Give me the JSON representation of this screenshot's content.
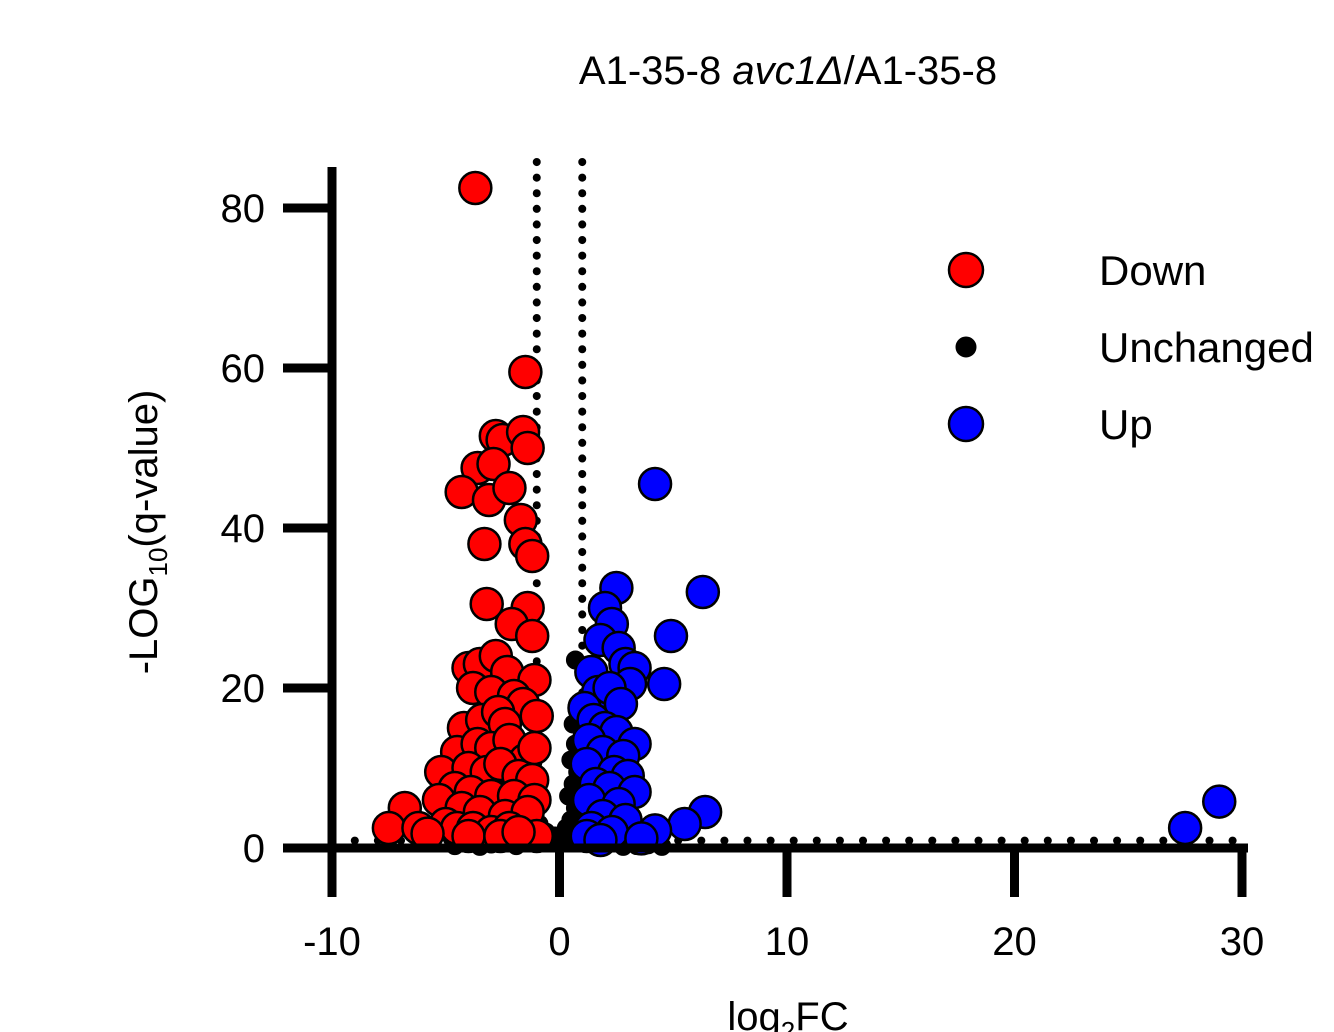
{
  "chart_data": {
    "type": "scatter",
    "title": "A1-35-8 avc1Δ/A1-35-8",
    "title_parts": {
      "strain": "A1-35-8",
      "mutant": "avc1Δ",
      "reference": "/A1-35-8"
    },
    "xlabel": "log2FC",
    "xlabel_parts": {
      "base": "log",
      "sub": "2",
      "tail": "FC"
    },
    "ylabel": "-LOG10(q-value)",
    "ylabel_parts": {
      "pre": "-LOG",
      "sub": "10",
      "post": "(q-value)"
    },
    "xlim": [
      -10,
      30
    ],
    "ylim": [
      0,
      85
    ],
    "xticks": [
      -10,
      0,
      10,
      20,
      30
    ],
    "yticks": [
      0,
      20,
      40,
      60,
      80
    ],
    "xtick_labels": [
      "-10",
      "0",
      "10",
      "20",
      "30"
    ],
    "ytick_labels": [
      "0",
      "20",
      "40",
      "60",
      "80"
    ],
    "fc_thresholds": [
      -1,
      1
    ],
    "q_threshold": 1.3,
    "grid": false,
    "legend_position": "top-right",
    "series": [
      {
        "name": "Down",
        "color": "#ff0000",
        "points": [
          [
            -3.7,
            82.5
          ],
          [
            -1.5,
            59.5
          ],
          [
            -2.8,
            51.5
          ],
          [
            -2.5,
            51
          ],
          [
            -1.6,
            52
          ],
          [
            -1.4,
            50
          ],
          [
            -3.6,
            47.5
          ],
          [
            -2.9,
            48
          ],
          [
            -4.3,
            44.5
          ],
          [
            -3.1,
            43.5
          ],
          [
            -2.2,
            45
          ],
          [
            -1.7,
            41
          ],
          [
            -3.3,
            38
          ],
          [
            -1.5,
            38
          ],
          [
            -1.2,
            36.5
          ],
          [
            -3.2,
            30.5
          ],
          [
            -1.4,
            30
          ],
          [
            -2.1,
            28
          ],
          [
            -1.2,
            26.5
          ],
          [
            -4.0,
            22.5
          ],
          [
            -3.5,
            23
          ],
          [
            -2.8,
            24
          ],
          [
            -2.3,
            22
          ],
          [
            -1.1,
            21
          ],
          [
            -3.8,
            20
          ],
          [
            -3.0,
            19.5
          ],
          [
            -2.0,
            19
          ],
          [
            -1.6,
            18
          ],
          [
            -4.2,
            15
          ],
          [
            -3.4,
            16
          ],
          [
            -2.7,
            17
          ],
          [
            -2.4,
            15.5
          ],
          [
            -1.0,
            16.5
          ],
          [
            -4.5,
            12
          ],
          [
            -3.6,
            13
          ],
          [
            -3.0,
            12.5
          ],
          [
            -2.2,
            13.5
          ],
          [
            -1.5,
            11
          ],
          [
            -1.1,
            12.5
          ],
          [
            -5.2,
            9.5
          ],
          [
            -4.0,
            10
          ],
          [
            -3.2,
            9.5
          ],
          [
            -2.6,
            10.5
          ],
          [
            -1.8,
            9
          ],
          [
            -1.2,
            8.5
          ],
          [
            -4.6,
            7.5
          ],
          [
            -3.9,
            7
          ],
          [
            -3.0,
            6.5
          ],
          [
            -2.0,
            6.5
          ],
          [
            -1.1,
            6
          ],
          [
            -6.8,
            5
          ],
          [
            -5.3,
            6
          ],
          [
            -4.3,
            5
          ],
          [
            -3.5,
            4.5
          ],
          [
            -2.4,
            4
          ],
          [
            -1.4,
            4.5
          ],
          [
            -7.5,
            2.5
          ],
          [
            -6.2,
            2.5
          ],
          [
            -5.0,
            3
          ],
          [
            -4.5,
            2.5
          ],
          [
            -3.8,
            2.5
          ],
          [
            -3.0,
            2
          ],
          [
            -2.2,
            2.5
          ],
          [
            -1.0,
            1.5
          ],
          [
            -5.8,
            1.8
          ],
          [
            -4.0,
            1.5
          ],
          [
            -2.6,
            1.5
          ],
          [
            -1.8,
            2
          ]
        ]
      },
      {
        "name": "Unchanged",
        "color": "#000000",
        "points": [
          [
            0.7,
            23.5
          ],
          [
            0.8,
            18
          ],
          [
            0.6,
            15.5
          ],
          [
            0.7,
            13
          ],
          [
            0.5,
            11
          ],
          [
            0.8,
            9.5
          ],
          [
            0.6,
            8
          ],
          [
            0.4,
            6.5
          ],
          [
            0.7,
            5
          ],
          [
            0.5,
            3.5
          ],
          [
            0.3,
            2.5
          ],
          [
            0.8,
            2
          ],
          [
            0.2,
            1.2
          ],
          [
            -0.2,
            1.5
          ],
          [
            -0.6,
            2
          ],
          [
            -0.9,
            3
          ],
          [
            -0.4,
            0.8
          ],
          [
            0.0,
            0.5
          ],
          [
            -2.8,
            15
          ],
          [
            -2.6,
            12
          ],
          [
            -2.9,
            10
          ],
          [
            -2.5,
            8
          ],
          [
            -2.7,
            6
          ],
          [
            -2.4,
            4
          ],
          [
            -2.8,
            2.5
          ],
          [
            -2.3,
            1
          ],
          [
            -3.0,
            0.5
          ],
          [
            -1.9,
            0.3
          ],
          [
            -4.6,
            0.3
          ],
          [
            -3.5,
            0.2
          ],
          [
            1.5,
            0.4
          ],
          [
            2.0,
            0.3
          ],
          [
            2.8,
            0.2
          ],
          [
            3.4,
            0.3
          ],
          [
            3.9,
            0.4
          ],
          [
            4.5,
            0.2
          ]
        ]
      },
      {
        "name": "Up",
        "color": "#0000ff",
        "points": [
          [
            4.2,
            45.5
          ],
          [
            6.3,
            32
          ],
          [
            2.5,
            32.5
          ],
          [
            4.9,
            26.5
          ],
          [
            2.0,
            30
          ],
          [
            2.3,
            28
          ],
          [
            1.8,
            26
          ],
          [
            2.6,
            25
          ],
          [
            2.9,
            23
          ],
          [
            3.3,
            22.5
          ],
          [
            3.1,
            20.5
          ],
          [
            4.6,
            20.5
          ],
          [
            1.4,
            22
          ],
          [
            1.7,
            19.5
          ],
          [
            2.2,
            20
          ],
          [
            2.7,
            18
          ],
          [
            1.1,
            17.5
          ],
          [
            1.5,
            16
          ],
          [
            2.0,
            15
          ],
          [
            2.5,
            14.5
          ],
          [
            1.3,
            13.5
          ],
          [
            3.3,
            13
          ],
          [
            1.9,
            12
          ],
          [
            2.8,
            11.5
          ],
          [
            1.2,
            10.5
          ],
          [
            2.4,
            9.5
          ],
          [
            3.0,
            9
          ],
          [
            1.6,
            8
          ],
          [
            2.2,
            7.5
          ],
          [
            3.3,
            7
          ],
          [
            1.3,
            6
          ],
          [
            2.6,
            5.5
          ],
          [
            6.4,
            4.5
          ],
          [
            1.9,
            4
          ],
          [
            2.9,
            3.5
          ],
          [
            5.5,
            3
          ],
          [
            1.4,
            2.5
          ],
          [
            2.3,
            2
          ],
          [
            4.2,
            2.2
          ],
          [
            27.5,
            2.5
          ],
          [
            29.0,
            5.8
          ],
          [
            1.2,
            1.5
          ],
          [
            3.6,
            1.2
          ],
          [
            1.8,
            1.0
          ]
        ]
      }
    ]
  }
}
